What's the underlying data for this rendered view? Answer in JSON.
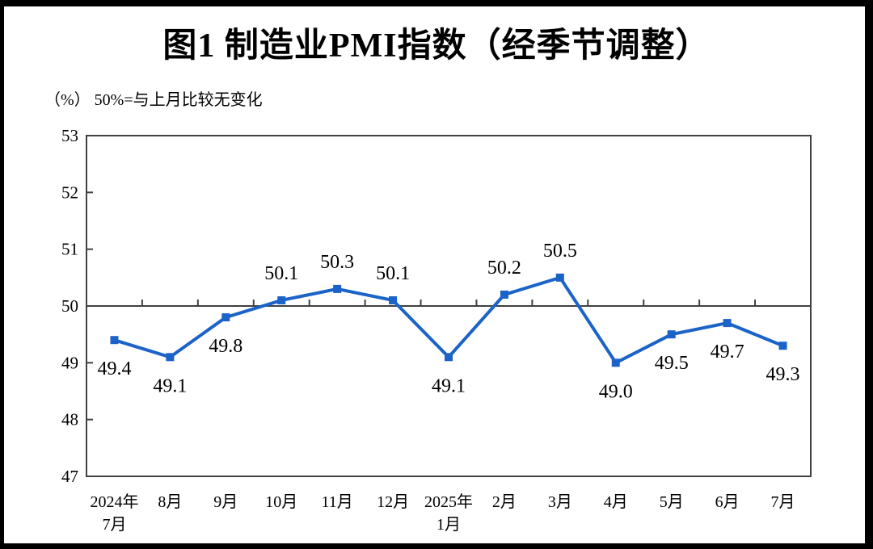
{
  "chart_data": {
    "type": "line",
    "title": "图1  制造业PMI指数（经季节调整）",
    "subtitle": "（%）  50%=与上月比较无变化",
    "categories": [
      [
        "2024年",
        "7月"
      ],
      [
        "8月"
      ],
      [
        "9月"
      ],
      [
        "10月"
      ],
      [
        "11月"
      ],
      [
        "12月"
      ],
      [
        "2025年",
        "1月"
      ],
      [
        "2月"
      ],
      [
        "3月"
      ],
      [
        "4月"
      ],
      [
        "5月"
      ],
      [
        "6月"
      ],
      [
        "7月"
      ]
    ],
    "series": [
      {
        "name": "制造业PMI",
        "values": [
          49.4,
          49.1,
          49.8,
          50.1,
          50.3,
          50.1,
          49.1,
          50.2,
          50.5,
          49.0,
          49.5,
          49.7,
          49.3
        ],
        "labels": [
          "49.4",
          "49.1",
          "49.8",
          "50.1",
          "50.3",
          "50.1",
          "49.1",
          "50.2",
          "50.5",
          "49.0",
          "49.5",
          "49.7",
          "49.3"
        ]
      }
    ],
    "ylim": [
      47,
      53
    ],
    "yticks": [
      47,
      48,
      49,
      50,
      51,
      52,
      53
    ],
    "reference_value": 50,
    "grid": "off",
    "legend": "none",
    "line_color": "#1B63C8",
    "axis_color": "#404040",
    "text_color": "#000000"
  }
}
